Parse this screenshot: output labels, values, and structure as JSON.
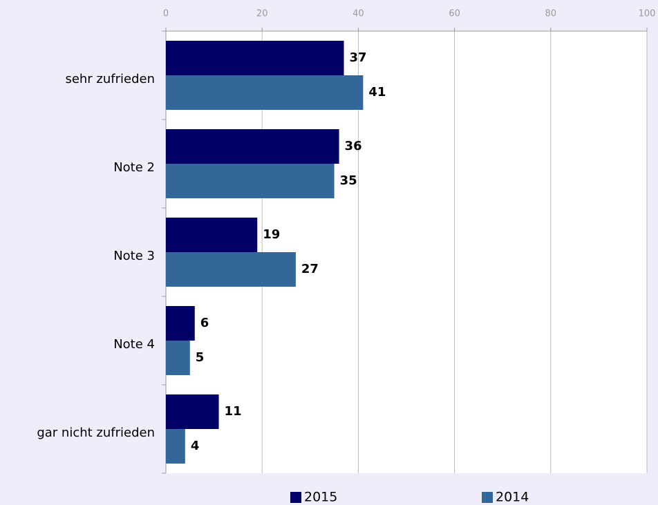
{
  "chart_data": {
    "type": "bar",
    "orientation": "horizontal",
    "categories": [
      "sehr zufrieden",
      "Note 2",
      "Note 3",
      "Note 4",
      "gar nicht zufrieden"
    ],
    "series": [
      {
        "name": "2015",
        "color": "#000066",
        "values": [
          37,
          36,
          19,
          6,
          11
        ]
      },
      {
        "name": "2014",
        "color": "#336699",
        "values": [
          41,
          35,
          27,
          5,
          4
        ]
      }
    ],
    "xlim": [
      0,
      100
    ],
    "xticks": [
      0,
      20,
      40,
      60,
      80,
      100
    ],
    "grid": true,
    "legend": "bottom"
  }
}
